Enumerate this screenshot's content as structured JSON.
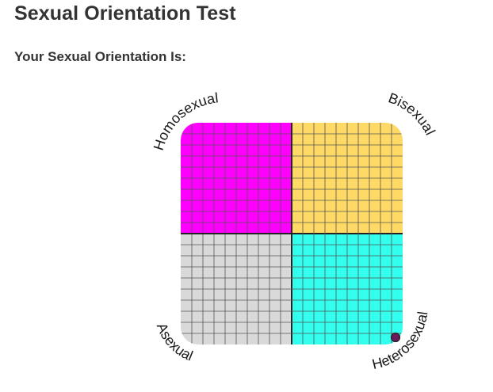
{
  "page": {
    "title": "Sexual Orientation Test",
    "result_heading": "Your Sexual Orientation Is:"
  },
  "quadrants": [
    {
      "key": "top-left",
      "color": "#ff00ff"
    },
    {
      "key": "top-right",
      "color": "#ffd966"
    },
    {
      "key": "bottom-left",
      "color": "#d9d9d9"
    },
    {
      "key": "bottom-right",
      "color": "#33ffee"
    }
  ],
  "grid_subdivisions_per_quadrant": 10,
  "corner_labels": {
    "top_left": "Homosexual",
    "top_right": "Bisexual",
    "bottom_left": "Asexual",
    "bottom_right": "Heterosexual"
  },
  "result_marker": {
    "x": 10,
    "y": -10,
    "scale": {
      "x": [
        -10,
        10
      ],
      "y": [
        -10,
        10
      ]
    },
    "color": "#6b1a5a"
  }
}
